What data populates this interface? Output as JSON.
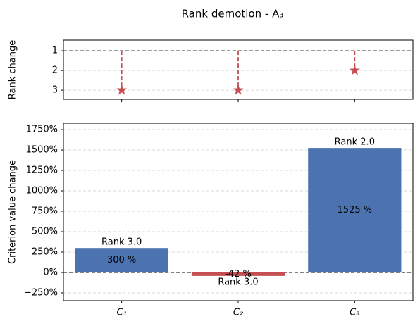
{
  "title": "Rank demotion - A₃",
  "chart_data": [
    {
      "type": "stem",
      "ylabel": "Rank change",
      "categories": [
        null,
        null,
        null
      ],
      "values": [
        3,
        3,
        2
      ],
      "color": "#c44e52",
      "baseline": 1,
      "ylim": [
        3.46,
        0.46
      ],
      "yticks": [
        1,
        2,
        3
      ],
      "grid": true
    },
    {
      "type": "bar",
      "ylabel": "Criterion value change",
      "categories": [
        "C₁",
        "C₂",
        "C₃"
      ],
      "values": [
        300,
        -42,
        1525
      ],
      "value_labels": [
        "300 %",
        "-42 %",
        "1525 %"
      ],
      "rank_labels": [
        "Rank 3.0",
        "Rank 3.0",
        "Rank 2.0"
      ],
      "colors": [
        "#4c72b0",
        "#c44e52",
        "#4c72b0"
      ],
      "baseline": 0,
      "ylim": [
        -345,
        1828
      ],
      "yticks": [
        {
          "value": -250,
          "label": "−250%"
        },
        {
          "value": 0,
          "label": "0%"
        },
        {
          "value": 250,
          "label": "250%"
        },
        {
          "value": 500,
          "label": "500%"
        },
        {
          "value": 750,
          "label": "750%"
        },
        {
          "value": 1000,
          "label": "1000%"
        },
        {
          "value": 1250,
          "label": "1250%"
        },
        {
          "value": 1500,
          "label": "1500%"
        },
        {
          "value": 1750,
          "label": "1750%"
        }
      ],
      "grid": true
    }
  ]
}
